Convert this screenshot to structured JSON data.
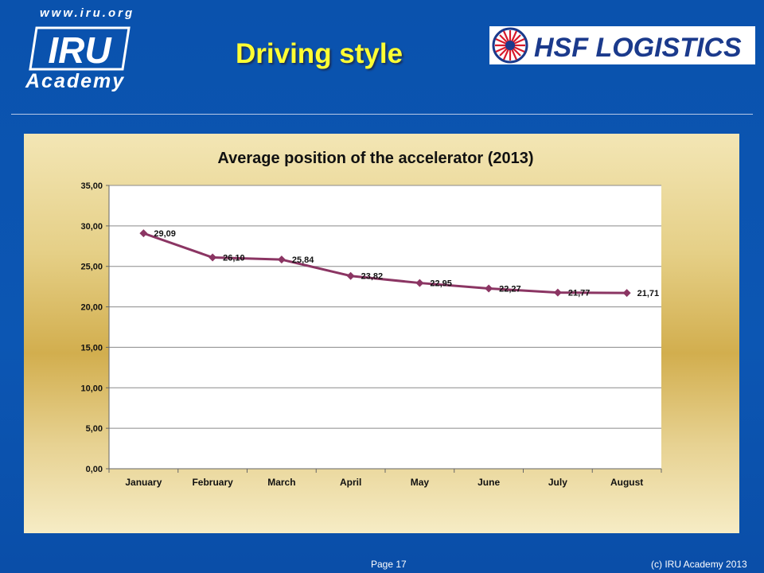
{
  "header": {
    "logo_url_text": "www.iru.org",
    "logo_text": "IRU",
    "logo_subtext": "Academy",
    "title": "Driving style",
    "partner_logo_text": "HSF LOGISTICS"
  },
  "footer": {
    "page_label": "Page 17",
    "copyright": "(c) IRU Academy 2013"
  },
  "colors": {
    "background": "#0b4ea8",
    "title": "#ffff33",
    "series_line": "#8b3563",
    "partner_logo_blue": "#1b3a8c",
    "partner_logo_red": "#d7192b"
  },
  "chart_data": {
    "type": "line",
    "title": "Average position of the accelerator (2013)",
    "xlabel": "",
    "ylabel": "",
    "categories": [
      "January",
      "February",
      "March",
      "April",
      "May",
      "June",
      "July",
      "August"
    ],
    "series": [
      {
        "values": [
          29.09,
          26.1,
          25.84,
          23.82,
          22.95,
          22.27,
          21.77,
          21.71
        ],
        "labels": [
          "29,09",
          "26,10",
          "25,84",
          "23,82",
          "22,95",
          "22,27",
          "21,77",
          "21,71"
        ]
      }
    ],
    "yticks": [
      "0,00",
      "5,00",
      "10,00",
      "15,00",
      "20,00",
      "25,00",
      "30,00",
      "35,00"
    ],
    "ylim": [
      0,
      35
    ],
    "grid": true,
    "legend": "none",
    "marker": "diamond"
  }
}
